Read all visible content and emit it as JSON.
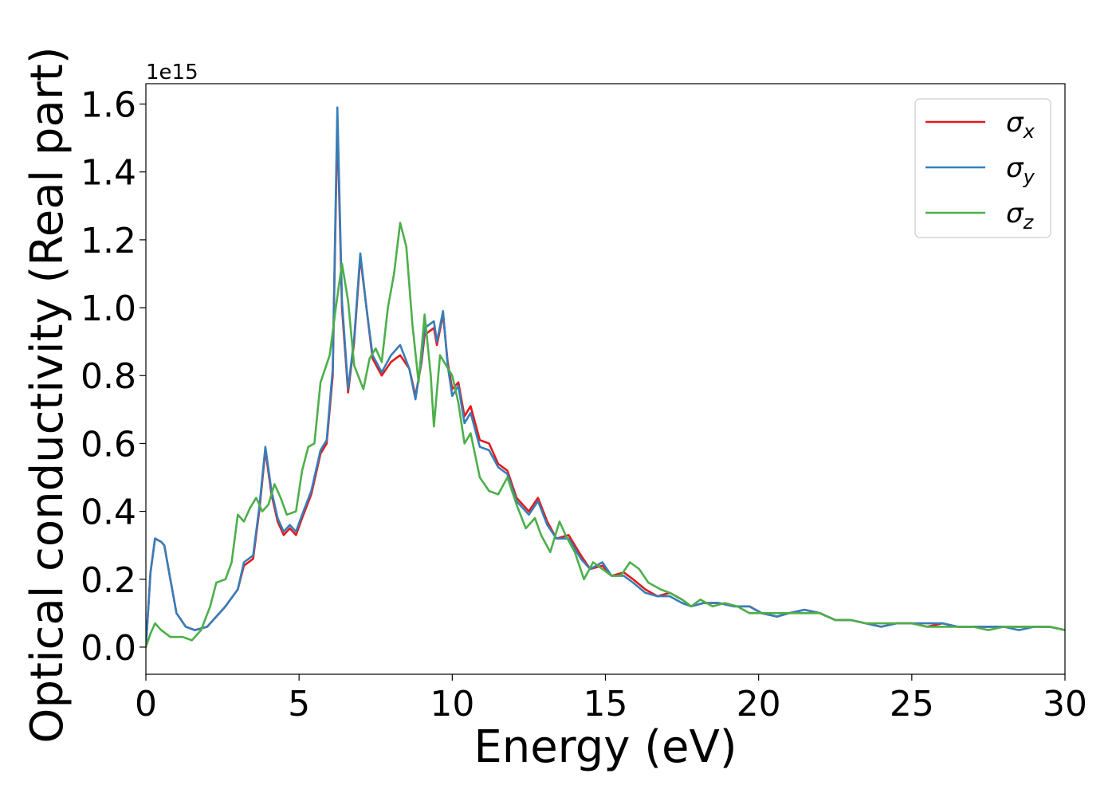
{
  "chart_data": {
    "type": "line",
    "xlabel": "Energy (eV)",
    "ylabel": "Optical conductivity (Real part)",
    "y_offset_label": "1e15",
    "y_scale_factor": 1000000000000000.0,
    "xlim": [
      0,
      30
    ],
    "ylim": [
      -0.08,
      1.66
    ],
    "x_ticks": [
      0,
      5,
      10,
      15,
      20,
      25,
      30
    ],
    "y_ticks": [
      0.0,
      0.2,
      0.4,
      0.6,
      0.8,
      1.0,
      1.2,
      1.4,
      1.6
    ],
    "x_tick_labels": [
      "0",
      "5",
      "10",
      "15",
      "20",
      "25",
      "30"
    ],
    "y_tick_labels": [
      "0.0",
      "0.2",
      "0.4",
      "0.6",
      "0.8",
      "1.0",
      "1.2",
      "1.4",
      "1.6"
    ],
    "grid": false,
    "legend_position": "top-right",
    "series": [
      {
        "name": "σx",
        "symbol": "σ",
        "subscript": "x",
        "color": "#e41a1c",
        "points": [
          [
            0,
            0.0
          ],
          [
            0.15,
            0.22
          ],
          [
            0.3,
            0.32
          ],
          [
            0.5,
            0.31
          ],
          [
            0.6,
            0.3
          ],
          [
            0.8,
            0.2
          ],
          [
            1.0,
            0.1
          ],
          [
            1.3,
            0.06
          ],
          [
            1.6,
            0.05
          ],
          [
            2.0,
            0.06
          ],
          [
            2.3,
            0.09
          ],
          [
            2.6,
            0.12
          ],
          [
            3.0,
            0.17
          ],
          [
            3.2,
            0.24
          ],
          [
            3.5,
            0.26
          ],
          [
            3.7,
            0.4
          ],
          [
            3.9,
            0.58
          ],
          [
            4.1,
            0.45
          ],
          [
            4.3,
            0.37
          ],
          [
            4.5,
            0.33
          ],
          [
            4.7,
            0.35
          ],
          [
            4.9,
            0.33
          ],
          [
            5.1,
            0.38
          ],
          [
            5.4,
            0.45
          ],
          [
            5.7,
            0.57
          ],
          [
            5.9,
            0.6
          ],
          [
            6.1,
            0.8
          ],
          [
            6.25,
            1.55
          ],
          [
            6.4,
            1.0
          ],
          [
            6.6,
            0.75
          ],
          [
            6.8,
            0.9
          ],
          [
            7.0,
            1.15
          ],
          [
            7.2,
            1.0
          ],
          [
            7.4,
            0.85
          ],
          [
            7.7,
            0.8
          ],
          [
            8.0,
            0.84
          ],
          [
            8.3,
            0.86
          ],
          [
            8.6,
            0.82
          ],
          [
            8.8,
            0.74
          ],
          [
            9.0,
            0.84
          ],
          [
            9.1,
            0.92
          ],
          [
            9.4,
            0.94
          ],
          [
            9.5,
            0.89
          ],
          [
            9.7,
            0.98
          ],
          [
            9.85,
            0.84
          ],
          [
            10.0,
            0.76
          ],
          [
            10.2,
            0.78
          ],
          [
            10.4,
            0.68
          ],
          [
            10.6,
            0.71
          ],
          [
            10.9,
            0.61
          ],
          [
            11.2,
            0.6
          ],
          [
            11.5,
            0.54
          ],
          [
            11.8,
            0.52
          ],
          [
            12.1,
            0.44
          ],
          [
            12.5,
            0.4
          ],
          [
            12.8,
            0.44
          ],
          [
            13.1,
            0.37
          ],
          [
            13.4,
            0.32
          ],
          [
            13.8,
            0.33
          ],
          [
            14.2,
            0.27
          ],
          [
            14.5,
            0.23
          ],
          [
            14.9,
            0.24
          ],
          [
            15.2,
            0.21
          ],
          [
            15.6,
            0.22
          ],
          [
            15.9,
            0.2
          ],
          [
            16.3,
            0.17
          ],
          [
            16.7,
            0.15
          ],
          [
            17.1,
            0.16
          ],
          [
            17.5,
            0.14
          ],
          [
            17.8,
            0.12
          ],
          [
            18.2,
            0.13
          ],
          [
            18.7,
            0.13
          ],
          [
            19.2,
            0.12
          ],
          [
            19.7,
            0.12
          ],
          [
            20.1,
            0.1
          ],
          [
            20.6,
            0.09
          ],
          [
            21.0,
            0.1
          ],
          [
            21.5,
            0.11
          ],
          [
            22.0,
            0.1
          ],
          [
            22.5,
            0.08
          ],
          [
            23.0,
            0.08
          ],
          [
            23.5,
            0.07
          ],
          [
            24.0,
            0.06
          ],
          [
            24.5,
            0.07
          ],
          [
            25.0,
            0.07
          ],
          [
            25.5,
            0.06
          ],
          [
            26.0,
            0.07
          ],
          [
            26.5,
            0.06
          ],
          [
            27.0,
            0.06
          ],
          [
            27.5,
            0.06
          ],
          [
            28.0,
            0.06
          ],
          [
            28.5,
            0.06
          ],
          [
            29.0,
            0.06
          ],
          [
            29.5,
            0.06
          ],
          [
            30.0,
            0.05
          ]
        ]
      },
      {
        "name": "σy",
        "symbol": "σ",
        "subscript": "y",
        "color": "#377eb8",
        "points": [
          [
            0,
            0.0
          ],
          [
            0.15,
            0.22
          ],
          [
            0.3,
            0.32
          ],
          [
            0.5,
            0.31
          ],
          [
            0.6,
            0.3
          ],
          [
            0.8,
            0.2
          ],
          [
            1.0,
            0.1
          ],
          [
            1.3,
            0.06
          ],
          [
            1.6,
            0.05
          ],
          [
            2.0,
            0.06
          ],
          [
            2.3,
            0.09
          ],
          [
            2.6,
            0.12
          ],
          [
            3.0,
            0.17
          ],
          [
            3.2,
            0.25
          ],
          [
            3.5,
            0.27
          ],
          [
            3.7,
            0.41
          ],
          [
            3.9,
            0.59
          ],
          [
            4.1,
            0.46
          ],
          [
            4.3,
            0.38
          ],
          [
            4.5,
            0.34
          ],
          [
            4.7,
            0.36
          ],
          [
            4.9,
            0.34
          ],
          [
            5.1,
            0.39
          ],
          [
            5.4,
            0.46
          ],
          [
            5.7,
            0.58
          ],
          [
            5.9,
            0.61
          ],
          [
            6.1,
            0.82
          ],
          [
            6.25,
            1.59
          ],
          [
            6.4,
            1.02
          ],
          [
            6.6,
            0.76
          ],
          [
            6.8,
            0.91
          ],
          [
            7.0,
            1.16
          ],
          [
            7.2,
            1.0
          ],
          [
            7.4,
            0.86
          ],
          [
            7.7,
            0.81
          ],
          [
            8.0,
            0.86
          ],
          [
            8.3,
            0.89
          ],
          [
            8.6,
            0.82
          ],
          [
            8.8,
            0.73
          ],
          [
            9.0,
            0.85
          ],
          [
            9.1,
            0.94
          ],
          [
            9.4,
            0.96
          ],
          [
            9.5,
            0.9
          ],
          [
            9.7,
            0.99
          ],
          [
            9.85,
            0.83
          ],
          [
            10.0,
            0.74
          ],
          [
            10.2,
            0.77
          ],
          [
            10.4,
            0.66
          ],
          [
            10.6,
            0.69
          ],
          [
            10.9,
            0.59
          ],
          [
            11.2,
            0.58
          ],
          [
            11.5,
            0.53
          ],
          [
            11.8,
            0.51
          ],
          [
            12.1,
            0.43
          ],
          [
            12.5,
            0.39
          ],
          [
            12.8,
            0.43
          ],
          [
            13.1,
            0.36
          ],
          [
            13.4,
            0.32
          ],
          [
            13.8,
            0.32
          ],
          [
            14.2,
            0.26
          ],
          [
            14.5,
            0.23
          ],
          [
            14.9,
            0.25
          ],
          [
            15.2,
            0.21
          ],
          [
            15.6,
            0.21
          ],
          [
            15.9,
            0.19
          ],
          [
            16.3,
            0.16
          ],
          [
            16.7,
            0.15
          ],
          [
            17.1,
            0.15
          ],
          [
            17.5,
            0.13
          ],
          [
            17.8,
            0.12
          ],
          [
            18.2,
            0.13
          ],
          [
            18.7,
            0.13
          ],
          [
            19.2,
            0.12
          ],
          [
            19.7,
            0.12
          ],
          [
            20.1,
            0.1
          ],
          [
            20.6,
            0.09
          ],
          [
            21.0,
            0.1
          ],
          [
            21.5,
            0.11
          ],
          [
            22.0,
            0.1
          ],
          [
            22.5,
            0.08
          ],
          [
            23.0,
            0.08
          ],
          [
            23.5,
            0.07
          ],
          [
            24.0,
            0.06
          ],
          [
            24.5,
            0.07
          ],
          [
            25.0,
            0.07
          ],
          [
            25.5,
            0.07
          ],
          [
            26.0,
            0.07
          ],
          [
            26.5,
            0.06
          ],
          [
            27.0,
            0.06
          ],
          [
            27.5,
            0.06
          ],
          [
            28.0,
            0.06
          ],
          [
            28.5,
            0.05
          ],
          [
            29.0,
            0.06
          ],
          [
            29.5,
            0.06
          ],
          [
            30.0,
            0.05
          ]
        ]
      },
      {
        "name": "σz",
        "symbol": "σ",
        "subscript": "z",
        "color": "#4daf4a",
        "points": [
          [
            0,
            0.0
          ],
          [
            0.15,
            0.04
          ],
          [
            0.3,
            0.07
          ],
          [
            0.5,
            0.05
          ],
          [
            0.8,
            0.03
          ],
          [
            1.2,
            0.03
          ],
          [
            1.5,
            0.02
          ],
          [
            1.8,
            0.05
          ],
          [
            2.1,
            0.12
          ],
          [
            2.3,
            0.19
          ],
          [
            2.6,
            0.2
          ],
          [
            2.8,
            0.25
          ],
          [
            3.0,
            0.39
          ],
          [
            3.2,
            0.37
          ],
          [
            3.4,
            0.41
          ],
          [
            3.6,
            0.44
          ],
          [
            3.8,
            0.4
          ],
          [
            4.0,
            0.42
          ],
          [
            4.2,
            0.48
          ],
          [
            4.4,
            0.44
          ],
          [
            4.6,
            0.39
          ],
          [
            4.9,
            0.4
          ],
          [
            5.1,
            0.52
          ],
          [
            5.3,
            0.59
          ],
          [
            5.5,
            0.6
          ],
          [
            5.7,
            0.78
          ],
          [
            6.0,
            0.86
          ],
          [
            6.2,
            1.0
          ],
          [
            6.4,
            1.13
          ],
          [
            6.6,
            1.02
          ],
          [
            6.8,
            0.83
          ],
          [
            7.1,
            0.76
          ],
          [
            7.3,
            0.85
          ],
          [
            7.5,
            0.88
          ],
          [
            7.7,
            0.84
          ],
          [
            7.9,
            1.0
          ],
          [
            8.1,
            1.1
          ],
          [
            8.3,
            1.25
          ],
          [
            8.5,
            1.18
          ],
          [
            8.7,
            0.95
          ],
          [
            8.9,
            0.78
          ],
          [
            9.1,
            0.98
          ],
          [
            9.3,
            0.8
          ],
          [
            9.4,
            0.65
          ],
          [
            9.6,
            0.86
          ],
          [
            9.8,
            0.83
          ],
          [
            10.0,
            0.8
          ],
          [
            10.2,
            0.72
          ],
          [
            10.4,
            0.6
          ],
          [
            10.6,
            0.63
          ],
          [
            10.9,
            0.5
          ],
          [
            11.2,
            0.46
          ],
          [
            11.5,
            0.45
          ],
          [
            11.8,
            0.5
          ],
          [
            12.1,
            0.42
          ],
          [
            12.4,
            0.35
          ],
          [
            12.7,
            0.38
          ],
          [
            12.9,
            0.33
          ],
          [
            13.2,
            0.28
          ],
          [
            13.5,
            0.37
          ],
          [
            13.7,
            0.33
          ],
          [
            14.0,
            0.28
          ],
          [
            14.3,
            0.2
          ],
          [
            14.6,
            0.25
          ],
          [
            14.9,
            0.23
          ],
          [
            15.2,
            0.21
          ],
          [
            15.5,
            0.21
          ],
          [
            15.8,
            0.25
          ],
          [
            16.1,
            0.23
          ],
          [
            16.4,
            0.19
          ],
          [
            16.8,
            0.17
          ],
          [
            17.1,
            0.16
          ],
          [
            17.5,
            0.14
          ],
          [
            17.8,
            0.12
          ],
          [
            18.1,
            0.14
          ],
          [
            18.5,
            0.12
          ],
          [
            18.9,
            0.13
          ],
          [
            19.3,
            0.12
          ],
          [
            19.7,
            0.1
          ],
          [
            20.1,
            0.1
          ],
          [
            20.5,
            0.1
          ],
          [
            21.0,
            0.1
          ],
          [
            21.5,
            0.1
          ],
          [
            22.0,
            0.1
          ],
          [
            22.5,
            0.08
          ],
          [
            23.0,
            0.08
          ],
          [
            23.5,
            0.07
          ],
          [
            24.0,
            0.07
          ],
          [
            24.5,
            0.07
          ],
          [
            25.0,
            0.07
          ],
          [
            25.5,
            0.06
          ],
          [
            26.0,
            0.06
          ],
          [
            26.5,
            0.06
          ],
          [
            27.0,
            0.06
          ],
          [
            27.5,
            0.05
          ],
          [
            28.0,
            0.06
          ],
          [
            28.5,
            0.06
          ],
          [
            29.0,
            0.06
          ],
          [
            29.5,
            0.06
          ],
          [
            30.0,
            0.05
          ]
        ]
      }
    ]
  }
}
